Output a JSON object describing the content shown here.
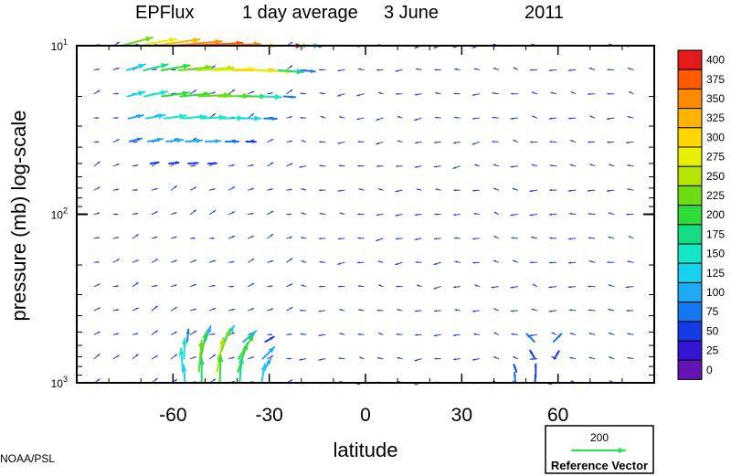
{
  "chart_data": {
    "type": "vector",
    "title_name": "EPFlux",
    "title_period": "1 day average",
    "title_date": "3 June",
    "title_year": "2011",
    "xlabel": "latitude",
    "ylabel": "pressure (mb)  log-scale",
    "xlim": [
      -90,
      90
    ],
    "ylim": [
      1000,
      10
    ],
    "y_scale": "log",
    "x_ticks": [
      -60,
      -30,
      0,
      30,
      60
    ],
    "x_tick_labels": [
      "-60",
      "-30",
      "0",
      "30",
      "60"
    ],
    "y_tick_labels": [
      {
        "base": "10",
        "exp": "1",
        "value": 10
      },
      {
        "base": "10",
        "exp": "2",
        "value": 100
      },
      {
        "base": "10",
        "exp": "3",
        "value": 1000
      }
    ],
    "colorbar": {
      "labels": [
        "400",
        "375",
        "350",
        "325",
        "300",
        "275",
        "250",
        "225",
        "200",
        "175",
        "150",
        "125",
        "100",
        "75",
        "50",
        "25",
        "0"
      ],
      "colors": [
        "#e51a1a",
        "#ff5a00",
        "#ff8c00",
        "#ffb400",
        "#ffd700",
        "#e6f000",
        "#b4e600",
        "#6edc14",
        "#2ddc37",
        "#14dc82",
        "#14e6c8",
        "#14d2f0",
        "#1eaaf5",
        "#1478f0",
        "#143ce6",
        "#3214d2",
        "#6414b4"
      ]
    },
    "reference_vector": {
      "value": "200",
      "label": "Reference Vector",
      "color": "#1ee650"
    },
    "vectors": [
      {
        "lat": -72,
        "p": 10,
        "mag": 230,
        "dir": 15
      },
      {
        "lat": -66,
        "p": 10,
        "mag": 280,
        "dir": 10
      },
      {
        "lat": -60,
        "p": 10,
        "mag": 330,
        "dir": 8
      },
      {
        "lat": -54,
        "p": 10,
        "mag": 360,
        "dir": 5
      },
      {
        "lat": -48,
        "p": 10,
        "mag": 380,
        "dir": 3
      },
      {
        "lat": -42,
        "p": 10,
        "mag": 360,
        "dir": 2
      },
      {
        "lat": -36,
        "p": 10,
        "mag": 320,
        "dir": 0
      },
      {
        "lat": -30,
        "p": 10,
        "mag": 400,
        "dir": 0
      },
      {
        "lat": -24,
        "p": 10,
        "mag": 250,
        "dir": 0
      },
      {
        "lat": -18,
        "p": 10,
        "mag": 150,
        "dir": 0
      },
      {
        "lat": -72,
        "p": 14,
        "mag": 140,
        "dir": 18
      },
      {
        "lat": -66,
        "p": 14,
        "mag": 180,
        "dir": 14
      },
      {
        "lat": -60,
        "p": 14,
        "mag": 210,
        "dir": 10
      },
      {
        "lat": -54,
        "p": 14,
        "mag": 240,
        "dir": 6
      },
      {
        "lat": -48,
        "p": 14,
        "mag": 270,
        "dir": 4
      },
      {
        "lat": -42,
        "p": 14,
        "mag": 290,
        "dir": 2
      },
      {
        "lat": -36,
        "p": 14,
        "mag": 310,
        "dir": 0
      },
      {
        "lat": -30,
        "p": 14,
        "mag": 280,
        "dir": -2
      },
      {
        "lat": -24,
        "p": 14,
        "mag": 180,
        "dir": -4
      },
      {
        "lat": -18,
        "p": 14,
        "mag": 90,
        "dir": -6
      },
      {
        "lat": -72,
        "p": 20,
        "mag": 130,
        "dir": 15
      },
      {
        "lat": -66,
        "p": 20,
        "mag": 170,
        "dir": 12
      },
      {
        "lat": -60,
        "p": 20,
        "mag": 200,
        "dir": 8
      },
      {
        "lat": -54,
        "p": 20,
        "mag": 220,
        "dir": 5
      },
      {
        "lat": -48,
        "p": 20,
        "mag": 230,
        "dir": 3
      },
      {
        "lat": -42,
        "p": 20,
        "mag": 230,
        "dir": 1
      },
      {
        "lat": -36,
        "p": 20,
        "mag": 200,
        "dir": 0
      },
      {
        "lat": -30,
        "p": 20,
        "mag": 150,
        "dir": -2
      },
      {
        "lat": -24,
        "p": 20,
        "mag": 80,
        "dir": -4
      },
      {
        "lat": -72,
        "p": 27,
        "mag": 110,
        "dir": 12
      },
      {
        "lat": -66,
        "p": 27,
        "mag": 140,
        "dir": 10
      },
      {
        "lat": -60,
        "p": 27,
        "mag": 160,
        "dir": 7
      },
      {
        "lat": -54,
        "p": 27,
        "mag": 170,
        "dir": 5
      },
      {
        "lat": -48,
        "p": 27,
        "mag": 170,
        "dir": 3
      },
      {
        "lat": -42,
        "p": 27,
        "mag": 160,
        "dir": 1
      },
      {
        "lat": -36,
        "p": 27,
        "mag": 130,
        "dir": 0
      },
      {
        "lat": -30,
        "p": 27,
        "mag": 90,
        "dir": -2
      },
      {
        "lat": -72,
        "p": 37,
        "mag": 90,
        "dir": 14
      },
      {
        "lat": -66,
        "p": 37,
        "mag": 110,
        "dir": 10
      },
      {
        "lat": -60,
        "p": 37,
        "mag": 120,
        "dir": 6
      },
      {
        "lat": -54,
        "p": 37,
        "mag": 120,
        "dir": 4
      },
      {
        "lat": -48,
        "p": 37,
        "mag": 110,
        "dir": 2
      },
      {
        "lat": -42,
        "p": 37,
        "mag": 95,
        "dir": 0
      },
      {
        "lat": -36,
        "p": 37,
        "mag": 70,
        "dir": -2
      },
      {
        "lat": -66,
        "p": 50,
        "mag": 60,
        "dir": 8
      },
      {
        "lat": -60,
        "p": 50,
        "mag": 70,
        "dir": 5
      },
      {
        "lat": -54,
        "p": 50,
        "mag": 70,
        "dir": 3
      },
      {
        "lat": -48,
        "p": 50,
        "mag": 60,
        "dir": 1
      },
      {
        "lat": -54,
        "p": 570,
        "mag": 90,
        "dir": 85
      },
      {
        "lat": -48,
        "p": 570,
        "mag": 120,
        "dir": 70
      },
      {
        "lat": -42,
        "p": 570,
        "mag": 140,
        "dir": 55
      },
      {
        "lat": -36,
        "p": 570,
        "mag": 120,
        "dir": 40
      },
      {
        "lat": -30,
        "p": 570,
        "mag": 70,
        "dir": 30
      },
      {
        "lat": -54,
        "p": 720,
        "mag": 150,
        "dir": 88
      },
      {
        "lat": -48,
        "p": 720,
        "mag": 200,
        "dir": 78
      },
      {
        "lat": -42,
        "p": 720,
        "mag": 230,
        "dir": 68
      },
      {
        "lat": -36,
        "p": 720,
        "mag": 210,
        "dir": 58
      },
      {
        "lat": -30,
        "p": 720,
        "mag": 120,
        "dir": 45
      },
      {
        "lat": -54,
        "p": 860,
        "mag": 170,
        "dir": 95
      },
      {
        "lat": -48,
        "p": 860,
        "mag": 230,
        "dir": 85
      },
      {
        "lat": -42,
        "p": 860,
        "mag": 250,
        "dir": 80
      },
      {
        "lat": -36,
        "p": 860,
        "mag": 220,
        "dir": 72
      },
      {
        "lat": -30,
        "p": 860,
        "mag": 110,
        "dir": 60
      },
      {
        "lat": -54,
        "p": 1000,
        "mag": 130,
        "dir": 95
      },
      {
        "lat": -48,
        "p": 1000,
        "mag": 180,
        "dir": 90
      },
      {
        "lat": -42,
        "p": 1000,
        "mag": 200,
        "dir": 88
      },
      {
        "lat": -36,
        "p": 1000,
        "mag": 190,
        "dir": 85
      },
      {
        "lat": -30,
        "p": 1000,
        "mag": 140,
        "dir": 80
      },
      {
        "lat": 54,
        "p": 570,
        "mag": 80,
        "dir": 135
      },
      {
        "lat": 60,
        "p": 570,
        "mag": 80,
        "dir": 45
      },
      {
        "lat": 54,
        "p": 720,
        "mag": 70,
        "dir": 120
      },
      {
        "lat": 60,
        "p": 720,
        "mag": 65,
        "dir": 60
      },
      {
        "lat": 48,
        "p": 860,
        "mag": 55,
        "dir": 110
      },
      {
        "lat": 54,
        "p": 860,
        "mag": 55,
        "dir": 90
      },
      {
        "lat": 48,
        "p": 1000,
        "mag": 75,
        "dir": 95
      },
      {
        "lat": 54,
        "p": 1000,
        "mag": 70,
        "dir": 85
      }
    ]
  },
  "footer": {
    "credit": "NOAA/PSL"
  }
}
